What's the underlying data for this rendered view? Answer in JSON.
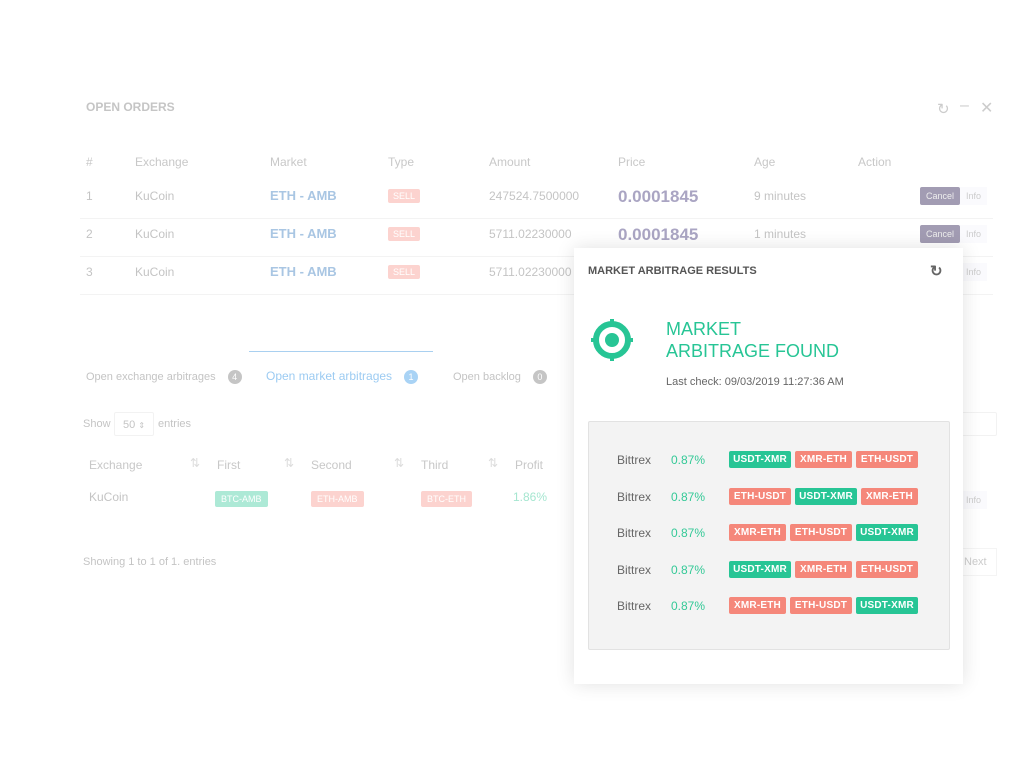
{
  "orders": {
    "title": "OPEN ORDERS",
    "headers": [
      "#",
      "Exchange",
      "Market",
      "Type",
      "Amount",
      "Price",
      "Age",
      "Action"
    ],
    "rows": [
      {
        "n": "1",
        "exchange": "KuCoin",
        "market": "ETH - AMB",
        "type": "SELL",
        "amount": "247524.7500000",
        "price": "0.0001845",
        "age": "9 minutes",
        "cancel": "Cancel",
        "info": "Info"
      },
      {
        "n": "2",
        "exchange": "KuCoin",
        "market": "ETH - AMB",
        "type": "SELL",
        "amount": "5711.02230000",
        "price": "0.0001845",
        "age": "1 minutes",
        "cancel": "Cancel",
        "info": "Info"
      },
      {
        "n": "3",
        "exchange": "KuCoin",
        "market": "ETH - AMB",
        "type": "SELL",
        "amount": "5711.02230000",
        "info": "Info"
      }
    ]
  },
  "tabs": [
    {
      "label": "Open exchange arbitrages",
      "count": "4"
    },
    {
      "label": "Open market arbitrages",
      "count": "1"
    },
    {
      "label": "Open backlog",
      "count": "0"
    }
  ],
  "arbs": {
    "show": "Show",
    "entries_value": "50",
    "entries": "entries",
    "headers": [
      "Exchange",
      "First",
      "Second",
      "Third",
      "Profit"
    ],
    "row": {
      "exchange": "KuCoin",
      "first": "BTC-AMB",
      "second": "ETH-AMB",
      "third": "BTC-ETH",
      "profit": "1.86%",
      "info": "Info"
    },
    "showing": "Showing 1 to 1 of 1. entries",
    "next": "Next"
  },
  "popup": {
    "title": "MARKET ARBITRAGE RESULTS",
    "heading1": "MARKET",
    "heading2": "ARBITRAGE FOUND",
    "last_check": "Last check: 09/03/2019 11:27:36 AM",
    "results": [
      {
        "exchange": "Bittrex",
        "profit": "0.87%",
        "pairs": [
          "USDT-XMR",
          "XMR-ETH",
          "ETH-USDT"
        ]
      },
      {
        "exchange": "Bittrex",
        "profit": "0.87%",
        "pairs": [
          "ETH-USDT",
          "USDT-XMR",
          "XMR-ETH"
        ]
      },
      {
        "exchange": "Bittrex",
        "profit": "0.87%",
        "pairs": [
          "XMR-ETH",
          "ETH-USDT",
          "USDT-XMR"
        ]
      },
      {
        "exchange": "Bittrex",
        "profit": "0.87%",
        "pairs": [
          "USDT-XMR",
          "XMR-ETH",
          "ETH-USDT"
        ]
      },
      {
        "exchange": "Bittrex",
        "profit": "0.87%",
        "pairs": [
          "XMR-ETH",
          "ETH-USDT",
          "USDT-XMR"
        ]
      }
    ]
  },
  "colors": {
    "green": "#27c595",
    "red": "#f5877a",
    "accent": "#a9c6e3"
  }
}
